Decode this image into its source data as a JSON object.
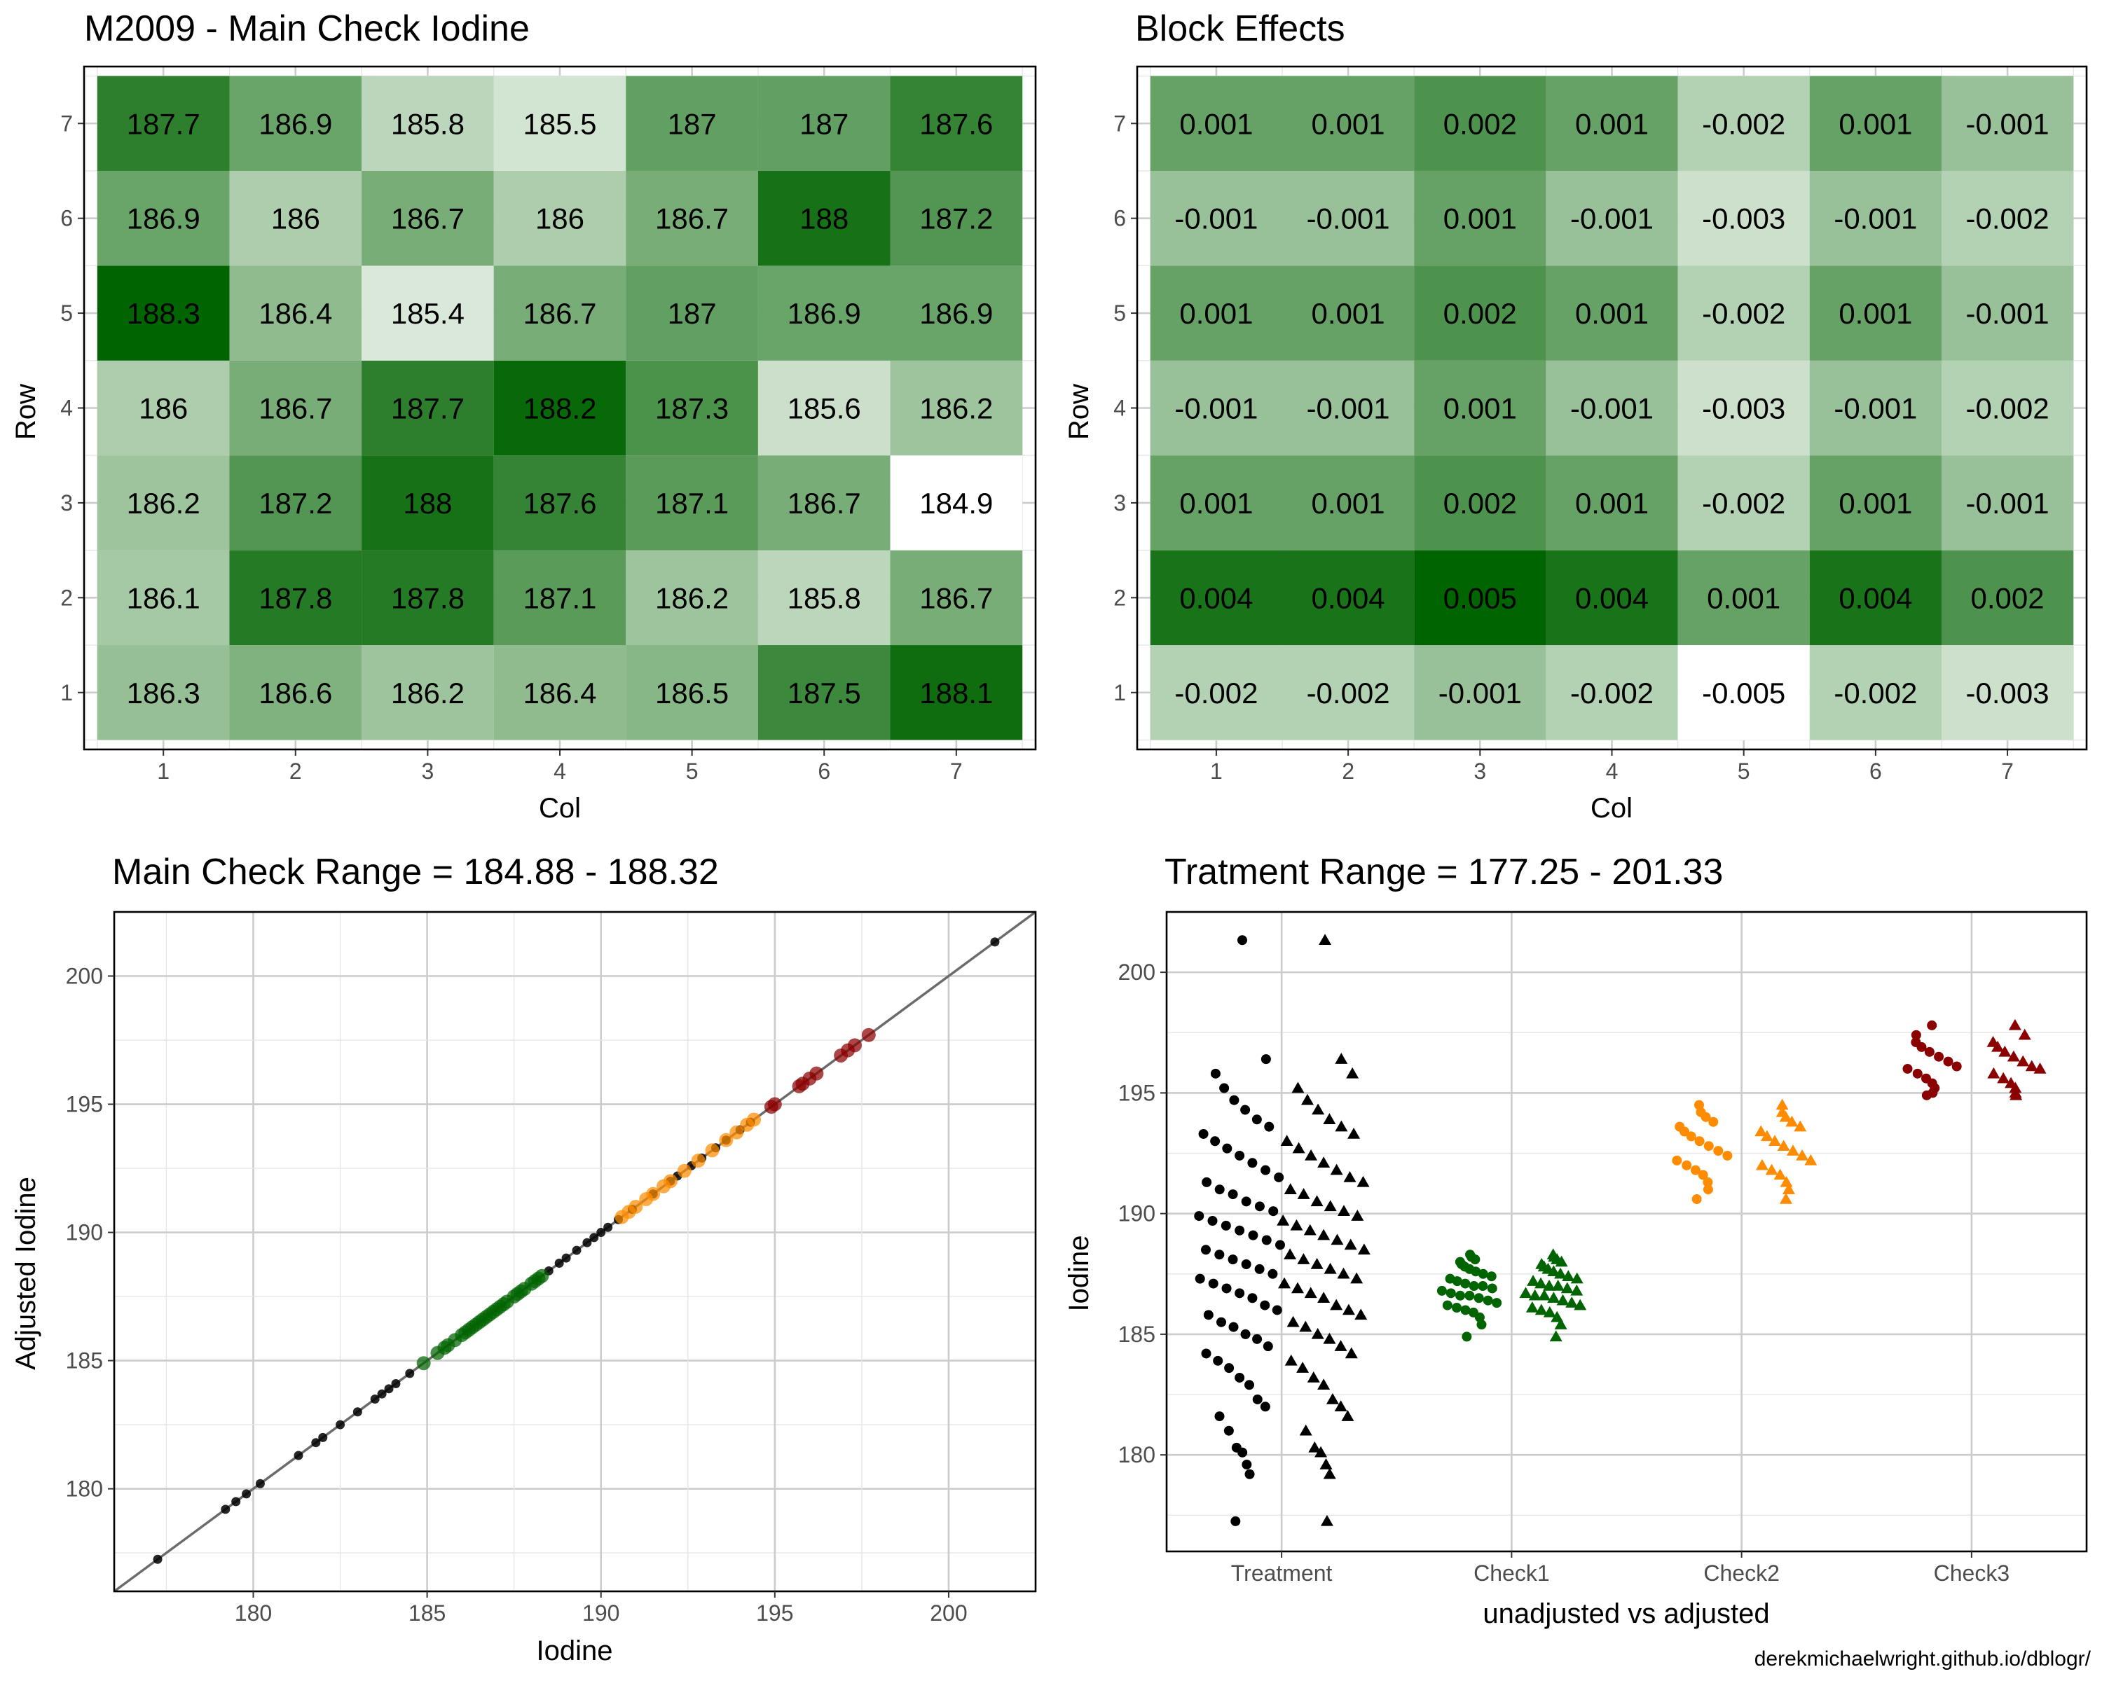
{
  "caption": "derekmichaelwright.github.io/dblogr/",
  "chart_data": [
    {
      "type": "heatmap",
      "title": "M2009 - Main Check Iodine",
      "xlabel": "Col",
      "ylabel": "Row",
      "cols": [
        "1",
        "2",
        "3",
        "4",
        "5",
        "6",
        "7"
      ],
      "rows": [
        "1",
        "2",
        "3",
        "4",
        "5",
        "6",
        "7"
      ],
      "labels": [
        [
          "186.3",
          "186.6",
          "186.2",
          "186.4",
          "186.5",
          "187.5",
          "188.1"
        ],
        [
          "186.1",
          "187.8",
          "187.8",
          "187.1",
          "186.2",
          "185.8",
          "186.7"
        ],
        [
          "186.2",
          "187.2",
          "188",
          "187.6",
          "187.1",
          "186.7",
          "184.9"
        ],
        [
          "186",
          "186.7",
          "187.7",
          "188.2",
          "187.3",
          "185.6",
          "186.2"
        ],
        [
          "188.3",
          "186.4",
          "185.4",
          "186.7",
          "187",
          "186.9",
          "186.9"
        ],
        [
          "186.9",
          "186",
          "186.7",
          "186",
          "186.7",
          "188",
          "187.2"
        ],
        [
          "187.7",
          "186.9",
          "185.8",
          "185.5",
          "187",
          "187",
          "187.6"
        ]
      ],
      "fill_low": "#ffffff",
      "fill_high": "#006400"
    },
    {
      "type": "heatmap",
      "title": "Block Effects",
      "xlabel": "Col",
      "ylabel": "Row",
      "cols": [
        "1",
        "2",
        "3",
        "4",
        "5",
        "6",
        "7"
      ],
      "rows": [
        "1",
        "2",
        "3",
        "4",
        "5",
        "6",
        "7"
      ],
      "labels": [
        [
          "-0.002",
          "-0.002",
          "-0.001",
          "-0.002",
          "-0.005",
          "-0.002",
          "-0.003"
        ],
        [
          "0.004",
          "0.004",
          "0.005",
          "0.004",
          "0.001",
          "0.004",
          "0.002"
        ],
        [
          "0.001",
          "0.001",
          "0.002",
          "0.001",
          "-0.002",
          "0.001",
          "-0.001"
        ],
        [
          "-0.001",
          "-0.001",
          "0.001",
          "-0.001",
          "-0.003",
          "-0.001",
          "-0.002"
        ],
        [
          "0.001",
          "0.001",
          "0.002",
          "0.001",
          "-0.002",
          "0.001",
          "-0.001"
        ],
        [
          "-0.001",
          "-0.001",
          "0.001",
          "-0.001",
          "-0.003",
          "-0.001",
          "-0.002"
        ],
        [
          "0.001",
          "0.001",
          "0.002",
          "0.001",
          "-0.002",
          "0.001",
          "-0.001"
        ]
      ],
      "fill_low": "#ffffff",
      "fill_high": "#006400"
    },
    {
      "type": "scatter",
      "title": "Main Check Range = 184.88 - 188.32",
      "xlabel": "Iodine",
      "ylabel": "Adjusted Iodine",
      "xlim": [
        176,
        202.5
      ],
      "ylim": [
        176,
        202.5
      ],
      "xticks": [
        "180",
        "185",
        "190",
        "195",
        "200"
      ],
      "yticks": [
        "180",
        "185",
        "190",
        "195",
        "200"
      ],
      "reference_line": "y = x",
      "series": [
        {
          "color": "#000000",
          "values": [
            177.25,
            179.2,
            179.5,
            179.8,
            180.2,
            181.3,
            181.8,
            182.0,
            182.5,
            183.0,
            183.5,
            183.7,
            183.9,
            184.1,
            184.5,
            188.5,
            188.8,
            189.0,
            189.3,
            189.6,
            189.8,
            190.0,
            190.2,
            190.5,
            190.9,
            191.5,
            192.0,
            192.2,
            192.6,
            192.9,
            193.3,
            193.6,
            194.0,
            194.3,
            201.33
          ]
        },
        {
          "color": "#006400",
          "values": [
            184.9,
            185.3,
            185.5,
            185.6,
            185.8,
            186.0,
            186.1,
            186.2,
            186.3,
            186.4,
            186.5,
            186.6,
            186.7,
            186.8,
            186.9,
            187.0,
            187.1,
            187.2,
            187.3,
            187.5,
            187.6,
            187.7,
            187.8,
            188.0,
            188.1,
            188.2,
            188.3
          ]
        },
        {
          "color": "#ff8c00",
          "values": [
            190.6,
            190.8,
            191.0,
            191.3,
            191.5,
            191.8,
            192.0,
            192.4,
            192.8,
            193.2,
            193.6,
            193.9,
            194.2,
            194.4
          ]
        },
        {
          "color": "#8b0000",
          "values": [
            194.9,
            195.0,
            195.7,
            195.8,
            196.0,
            196.2,
            196.9,
            197.1,
            197.3,
            197.7
          ]
        }
      ]
    },
    {
      "type": "scatter",
      "title": "Tratment Range = 177.25 - 201.33",
      "xlabel": "unadjusted vs adjusted",
      "ylabel": "Iodine",
      "categories": [
        "Treatment",
        "Check1",
        "Check2",
        "Check3"
      ],
      "ylim": [
        176,
        202.5
      ],
      "yticks": [
        "180",
        "185",
        "190",
        "195",
        "200"
      ],
      "series": [
        {
          "name": "unadjusted",
          "shape": "circle"
        },
        {
          "name": "adjusted",
          "shape": "triangle"
        }
      ],
      "groups": [
        {
          "category": "Treatment",
          "color": "#000000",
          "min": 177.25,
          "max": 201.33,
          "values": [
            177.25,
            179.2,
            179.6,
            180.1,
            180.3,
            181.0,
            181.6,
            182.0,
            182.3,
            182.9,
            183.2,
            183.6,
            183.9,
            184.2,
            184.5,
            184.8,
            185.0,
            185.3,
            185.5,
            185.8,
            186.0,
            186.2,
            186.5,
            186.7,
            186.9,
            187.1,
            187.3,
            187.5,
            187.7,
            187.9,
            188.1,
            188.3,
            188.5,
            188.7,
            188.9,
            189.1,
            189.3,
            189.5,
            189.7,
            189.9,
            190.1,
            190.3,
            190.5,
            190.8,
            191.0,
            191.3,
            191.5,
            191.8,
            192.1,
            192.4,
            192.7,
            193.0,
            193.3,
            193.6,
            193.9,
            194.3,
            194.7,
            195.2,
            195.8,
            196.4,
            201.33
          ]
        },
        {
          "category": "Check1",
          "color": "#006400",
          "min": 184.88,
          "max": 188.32,
          "values": [
            184.9,
            185.4,
            185.7,
            185.9,
            186.0,
            186.1,
            186.2,
            186.3,
            186.4,
            186.5,
            186.6,
            186.6,
            186.7,
            186.8,
            186.9,
            187.0,
            187.0,
            187.1,
            187.2,
            187.3,
            187.4,
            187.5,
            187.6,
            187.7,
            187.8,
            187.9,
            188.0,
            188.1,
            188.2,
            188.3
          ]
        },
        {
          "category": "Check2",
          "color": "#ff8c00",
          "min": 190.6,
          "max": 194.5,
          "values": [
            190.6,
            191.0,
            191.3,
            191.6,
            191.8,
            192.0,
            192.2,
            192.4,
            192.6,
            192.8,
            193.0,
            193.2,
            193.4,
            193.6,
            193.8,
            194.0,
            194.2,
            194.5
          ]
        },
        {
          "category": "Check3",
          "color": "#8b0000",
          "min": 194.9,
          "max": 197.8,
          "values": [
            194.9,
            195.0,
            195.2,
            195.4,
            195.6,
            195.8,
            196.0,
            196.1,
            196.3,
            196.5,
            196.7,
            196.9,
            197.1,
            197.4,
            197.8
          ]
        }
      ]
    }
  ]
}
